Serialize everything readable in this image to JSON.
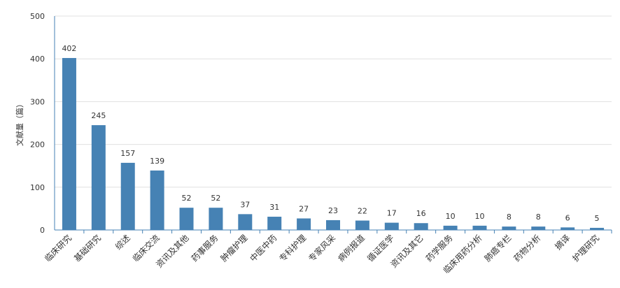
{
  "chart_data": {
    "type": "bar",
    "ylabel": "文献量（篇）",
    "ylim": [
      0,
      500
    ],
    "yticks": [
      0,
      100,
      200,
      300,
      400,
      500
    ],
    "grid": true,
    "legend": "none",
    "bar_color": "#4682b4",
    "categories": [
      "临床研究",
      "基础研究",
      "综述",
      "临床交流",
      "资讯及其他",
      "药事服务",
      "肿瘤护理",
      "中医中药",
      "专科护理",
      "专家风采",
      "病例报道",
      "循证医学",
      "资讯及其它",
      "药学服务",
      "临床用药分析",
      "肺癌专栏",
      "药物分析",
      "摘译",
      "护理研究"
    ],
    "values": [
      402,
      245,
      157,
      139,
      52,
      52,
      37,
      31,
      27,
      23,
      22,
      17,
      16,
      10,
      10,
      8,
      8,
      6,
      5
    ]
  }
}
